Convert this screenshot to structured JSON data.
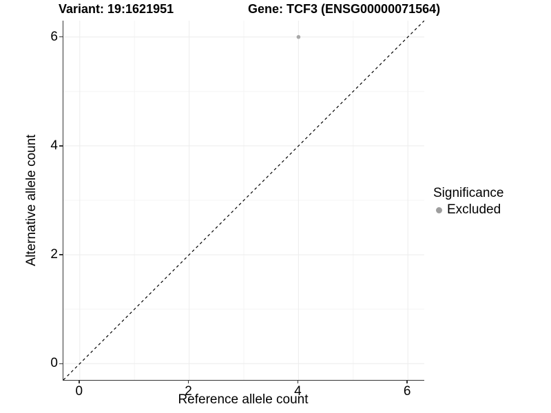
{
  "figure": {
    "title_left": "Variant: 19:1621951",
    "title_right": "Gene: TCF3 (ENSG00000071564)"
  },
  "chart_data": {
    "type": "scatter",
    "title": "Variant: 19:1621951  |  Gene: TCF3 (ENSG00000071564)",
    "xlabel": "Reference allele count",
    "ylabel": "Alternative allele count",
    "xlim": [
      -0.3,
      6.3
    ],
    "ylim": [
      -0.3,
      6.3
    ],
    "x_major_ticks": [
      0,
      2,
      4,
      6
    ],
    "y_major_ticks": [
      0,
      2,
      4,
      6
    ],
    "x_minor_gridlines": [
      1,
      3,
      5
    ],
    "y_minor_gridlines": [
      1,
      3,
      5
    ],
    "grid": true,
    "legend_position": "right",
    "series": [
      {
        "name": "Excluded",
        "color": "#a8a8a8",
        "marker": "circle",
        "marker_radius": 2.8,
        "points": [
          {
            "x": 4,
            "y": 6
          }
        ]
      }
    ],
    "reference_line": {
      "type": "identity y=x",
      "style": "dashed",
      "color": "#000000",
      "from": -0.3,
      "to": 6.3
    },
    "legend": {
      "title": "Significance",
      "entries": [
        {
          "label": "Excluded",
          "color": "#9e9e9e"
        }
      ]
    },
    "colors": {
      "major_gridline": "#ececec",
      "minor_gridline": "#f4f4f4",
      "axis_line": "#333333",
      "text": "#000000",
      "panel_background": "#ffffff"
    }
  }
}
